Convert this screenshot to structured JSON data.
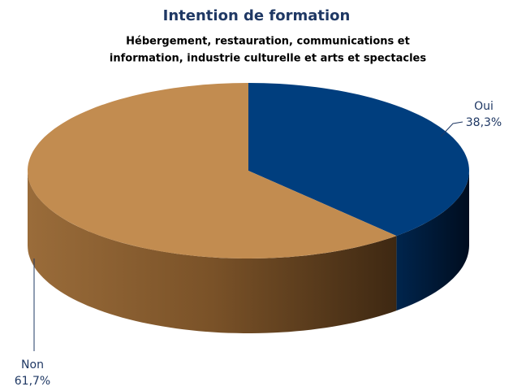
{
  "chart_data": {
    "type": "pie",
    "title": "Intention de formation",
    "subtitle": [
      "Hébergement, restauration, communications et",
      "information, industrie culturelle et arts et spectacles"
    ],
    "categories": [
      "Oui",
      "Non"
    ],
    "values": [
      38.3,
      61.7
    ],
    "value_labels": [
      "38,3%",
      "61,7%"
    ],
    "colors": [
      "#003e7e",
      "#c28c50"
    ]
  }
}
